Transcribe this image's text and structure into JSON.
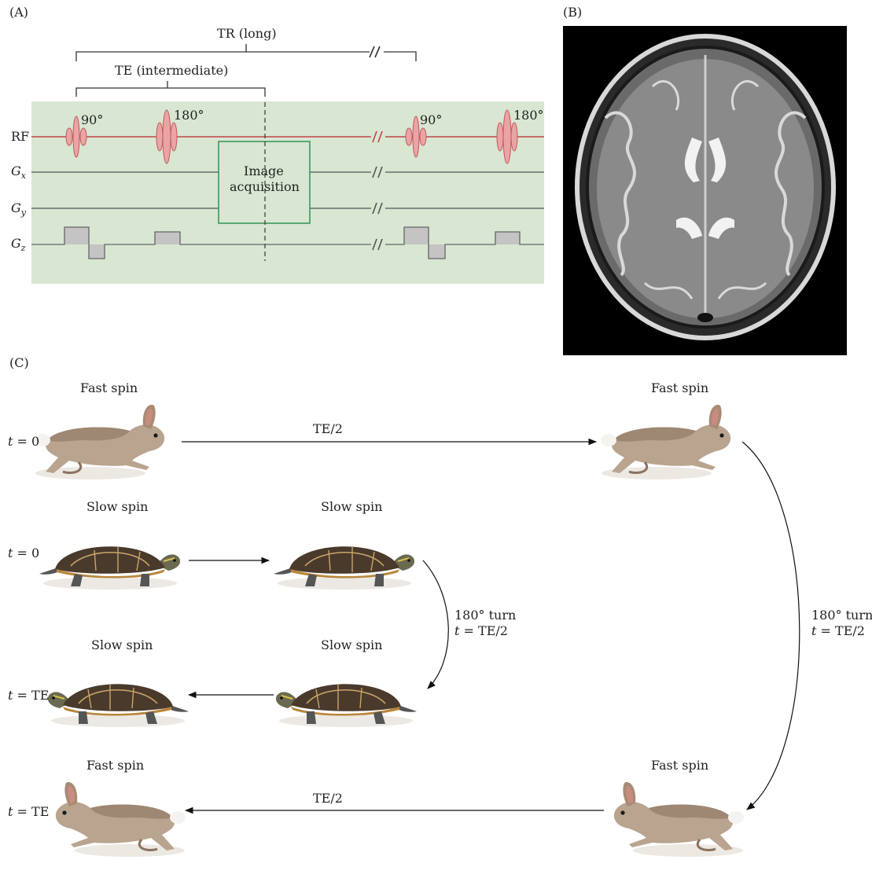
{
  "panel_a": {
    "label": "(A)",
    "tr_label": "TR (long)",
    "te_label": "TE (intermediate)",
    "rows": {
      "rf": "RF",
      "gx_main": "G",
      "gx_sub": "x",
      "gy_main": "G",
      "gy_sub": "y",
      "gz_main": "G",
      "gz_sub": "z"
    },
    "pulses": {
      "p90_first": "90°",
      "p180_first": "180°",
      "p90_second": "90°",
      "p180_second": "180°"
    },
    "acq_line1": "Image",
    "acq_line2": "acquisition",
    "colors": {
      "panel_bg": "#d8e6d2",
      "rf_line": "#c0454a",
      "pulse_fill": "#eaa4a4",
      "acq_box": "#3a9a5a",
      "gradient_fill": "#c4c4c4"
    }
  },
  "panel_b": {
    "label": "(B)",
    "image_description_icon": "brain-mri-axial"
  },
  "panel_c": {
    "label": "(C)",
    "fast_spin": "Fast spin",
    "slow_spin": "Slow spin",
    "t0": "t = 0",
    "t_var": "t",
    "t0_val": " = 0",
    "tte_val": " = TE",
    "te_half": "TE/2",
    "turn_line1": "180° turn",
    "turn_line2_var": "t",
    "turn_line2_val": " = TE/2",
    "icons": {
      "rabbit": "rabbit-icon",
      "turtle": "turtle-icon"
    }
  }
}
